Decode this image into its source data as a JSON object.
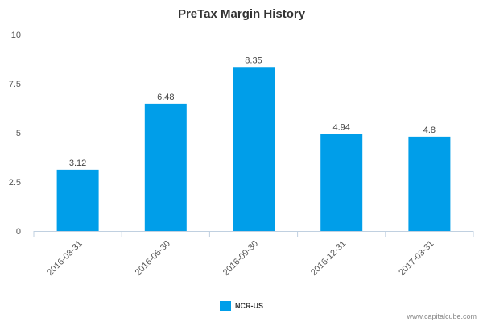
{
  "chart_data": {
    "type": "bar",
    "title": "PreTax Margin History",
    "xlabel": "",
    "ylabel": "",
    "categories": [
      "2016-03-31",
      "2016-06-30",
      "2016-09-30",
      "2016-12-31",
      "2017-03-31"
    ],
    "series": [
      {
        "name": "NCR-US",
        "values": [
          3.12,
          6.48,
          8.35,
          4.94,
          4.8
        ],
        "data_labels": [
          "3.12",
          "6.48",
          "8.35",
          "4.94",
          "4.8"
        ],
        "color": "#009ee9"
      }
    ],
    "ylim": [
      0,
      10
    ],
    "yticks": [
      0,
      2.5,
      5,
      7.5,
      10
    ],
    "ytick_labels": [
      "0",
      "2.5",
      "5",
      "7.5",
      "10"
    ],
    "grid": false,
    "legend_position": "bottom"
  },
  "credit": "www.capitalcube.com",
  "colors": {
    "axis_line": "#c0d0e0",
    "bar": "#009ee9"
  }
}
